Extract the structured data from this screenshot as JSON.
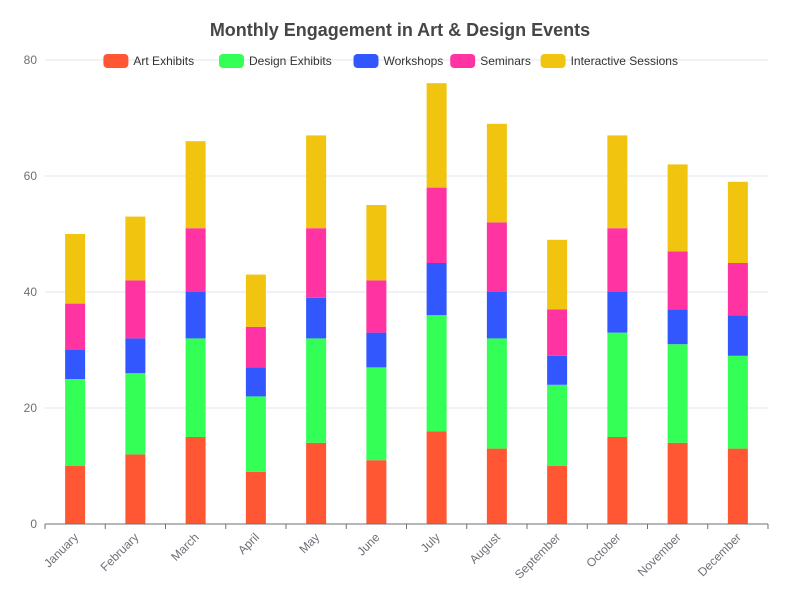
{
  "chart_data": {
    "type": "bar",
    "stacked": true,
    "title": "Monthly Engagement in Art & Design Events",
    "xlabel": "",
    "ylabel": "",
    "ylim": [
      0,
      80
    ],
    "yticks": [
      0,
      20,
      40,
      60,
      80
    ],
    "grid": true,
    "legend_position": "top",
    "categories": [
      "January",
      "February",
      "March",
      "April",
      "May",
      "June",
      "July",
      "August",
      "September",
      "October",
      "November",
      "December"
    ],
    "series": [
      {
        "name": "Art Exhibits",
        "color": "#ff5733",
        "values": [
          10,
          12,
          15,
          9,
          14,
          11,
          16,
          13,
          10,
          15,
          14,
          13
        ]
      },
      {
        "name": "Design Exhibits",
        "color": "#33ff57",
        "values": [
          15,
          14,
          17,
          13,
          18,
          16,
          20,
          19,
          14,
          18,
          17,
          16
        ]
      },
      {
        "name": "Workshops",
        "color": "#3357ff",
        "values": [
          5,
          6,
          8,
          5,
          7,
          6,
          9,
          8,
          5,
          7,
          6,
          7
        ]
      },
      {
        "name": "Seminars",
        "color": "#ff33a1",
        "values": [
          8,
          10,
          11,
          7,
          12,
          9,
          13,
          12,
          8,
          11,
          10,
          9
        ]
      },
      {
        "name": "Interactive Sessions",
        "color": "#f1c40f",
        "values": [
          12,
          11,
          15,
          9,
          16,
          13,
          18,
          17,
          12,
          16,
          15,
          14
        ]
      }
    ]
  }
}
